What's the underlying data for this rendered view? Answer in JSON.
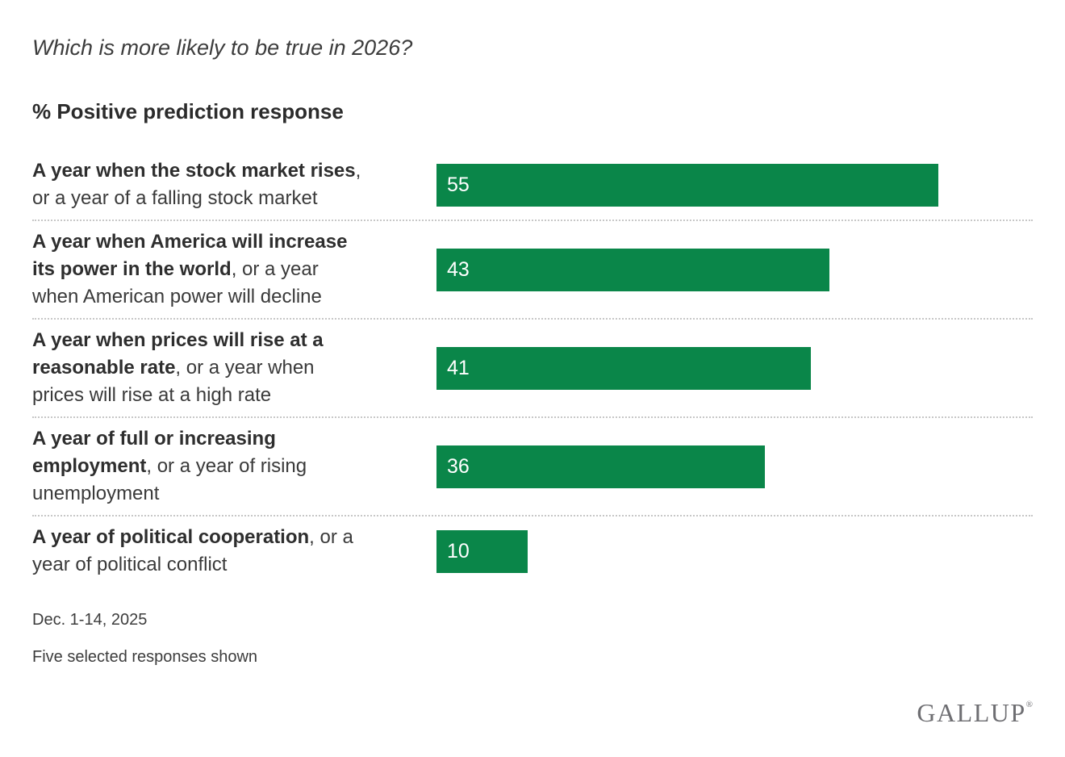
{
  "header": {
    "title": "Which is more likely to be true in 2026?",
    "subtitle": "% Positive prediction response"
  },
  "chart_data": {
    "type": "bar",
    "orientation": "horizontal",
    "title": "% Positive prediction response",
    "unit": "%",
    "xlim": [
      0,
      65.3
    ],
    "grid": false,
    "legend": "none",
    "bar_color": "#0A8649",
    "value_label_color": "#FFFFFF",
    "categories": [
      "A year when the stock market rises, or a year of a falling stock market",
      "A year when America will increase its power in the world, or a year when American power will decline",
      "A year when prices will rise at a reasonable rate, or a year when prices will rise at a high rate",
      "A year of full or increasing employment, or a year of rising unemployment",
      "A year of political cooperation, or a year of political conflict"
    ],
    "values": [
      55,
      43,
      41,
      36,
      10
    ],
    "rows": [
      {
        "label_bold": "A year when the stock market rises",
        "label_rest": ", or a year of a falling stock market",
        "value": 55
      },
      {
        "label_bold": "A year when America will increase its power in the world",
        "label_rest": ", or a year when American power will decline",
        "value": 43
      },
      {
        "label_bold": "A year when prices will rise at a reasonable rate",
        "label_rest": ", or a year when prices will rise at a high rate",
        "value": 41
      },
      {
        "label_bold": "A year of full or increasing employment",
        "label_rest": ", or a year of rising unemployment",
        "value": 36
      },
      {
        "label_bold": "A year of political cooperation",
        "label_rest": ", or a year of political conflict",
        "value": 10
      }
    ]
  },
  "footnotes": {
    "date_range": "Dec. 1-14, 2025",
    "note": "Five selected responses shown"
  },
  "branding": {
    "logo_text": "GALLUP",
    "registered_mark": "®"
  }
}
